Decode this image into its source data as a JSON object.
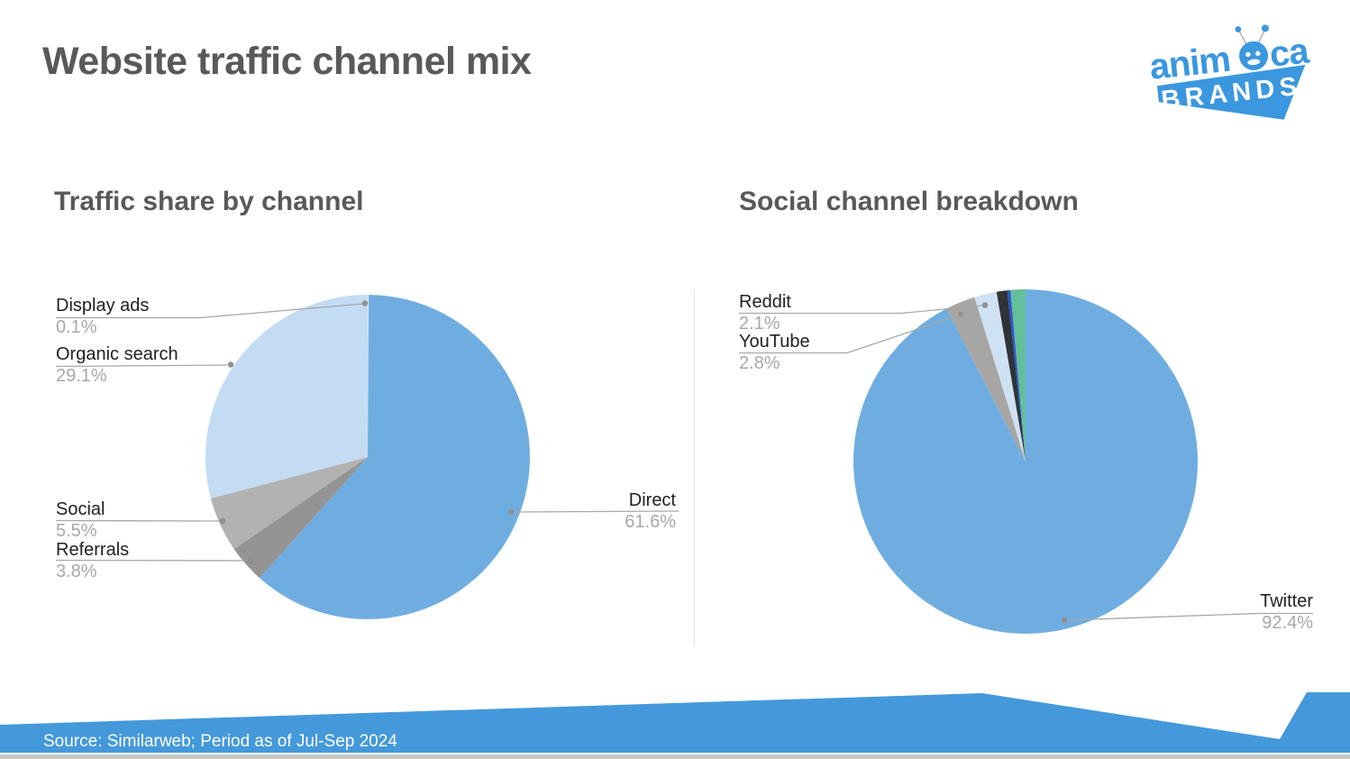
{
  "page": {
    "title": "Website traffic channel mix"
  },
  "charts": [
    {
      "heading": "Traffic share by channel",
      "labels": {
        "display_ads": {
          "name": "Display ads",
          "pct": "0.1%"
        },
        "organic_search": {
          "name": "Organic search",
          "pct": "29.1%"
        },
        "social": {
          "name": "Social",
          "pct": "5.5%"
        },
        "referrals": {
          "name": "Referrals",
          "pct": "3.8%"
        },
        "direct": {
          "name": "Direct",
          "pct": "61.6%"
        }
      }
    },
    {
      "heading": "Social channel breakdown",
      "labels": {
        "reddit": {
          "name": "Reddit",
          "pct": "2.1%"
        },
        "youtube": {
          "name": "YouTube",
          "pct": "2.8%"
        },
        "twitter": {
          "name": "Twitter",
          "pct": "92.4%"
        }
      }
    }
  ],
  "chart_data": [
    {
      "type": "pie",
      "title": "Traffic share by channel",
      "unit": "%",
      "slices": [
        {
          "label": "Direct",
          "value": 61.6,
          "color": "#6FADE1"
        },
        {
          "label": "Referrals",
          "value": 3.8,
          "color": "#949494"
        },
        {
          "label": "Social",
          "value": 5.5,
          "color": "#B2B2B2"
        },
        {
          "label": "Organic search",
          "value": 29.1,
          "color": "#C3DCF3"
        },
        {
          "label": "Display ads",
          "value": 0.1,
          "color": "#E9E9E9"
        }
      ]
    },
    {
      "type": "pie",
      "title": "Social channel breakdown",
      "unit": "%",
      "slices": [
        {
          "label": "Twitter",
          "value": 92.4,
          "color": "#6FADE1"
        },
        {
          "label": "YouTube",
          "value": 2.8,
          "color": "#A7A6A4"
        },
        {
          "label": "Reddit",
          "value": 2.1,
          "color": "#CFE2F4"
        },
        {
          "label": "other-dark",
          "value": 1.0,
          "color": "#2F3337"
        },
        {
          "label": "other-blue",
          "value": 0.3,
          "color": "#2C55CD"
        },
        {
          "label": "other-teal",
          "value": 1.4,
          "color": "#63BE9B"
        }
      ]
    }
  ],
  "footer": {
    "source": "Source: Similarweb; Period as of Jul-Sep 2024"
  },
  "logo": {
    "name_prefix": "anim",
    "name_suffix": "ca",
    "brands": "BRANDS"
  },
  "colors": {
    "pie_blue": "#6FADE1",
    "logo_blue": "#3B97DE",
    "footer_blue": "#4499DB",
    "heading_gray": "#595959",
    "label_dark": "#212121",
    "label_gray": "#A8A8A8"
  }
}
